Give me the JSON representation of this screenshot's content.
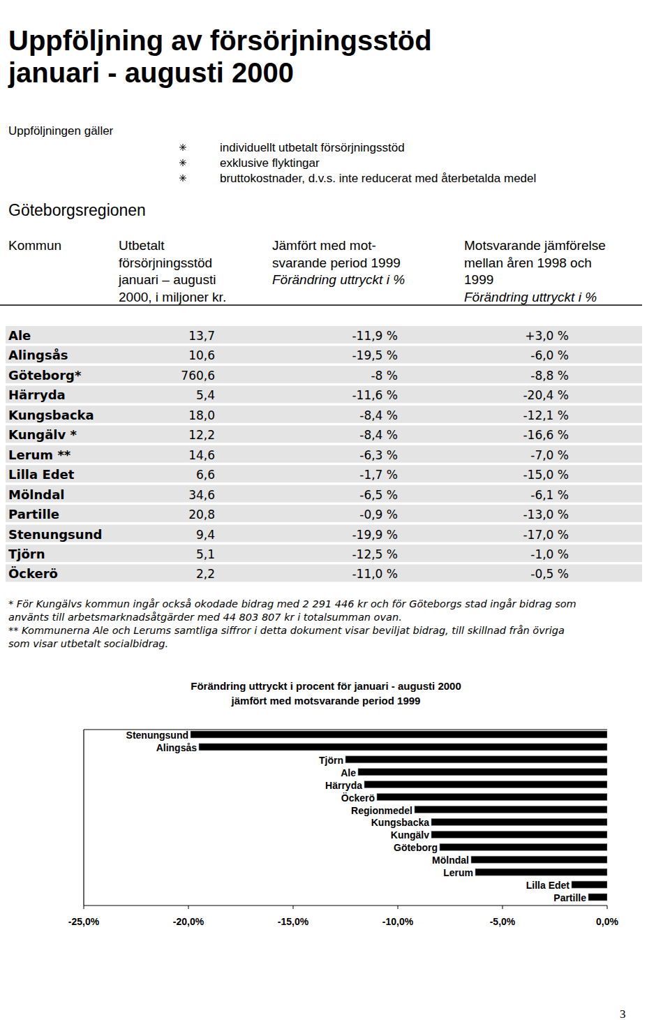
{
  "header": {
    "title": [
      "Uppföljning av försörjningsstöd",
      "januari - augusti 2000"
    ],
    "intro": "Uppföljningen gäller",
    "bullets": [
      "individuellt utbetalt försörjningsstöd",
      "exklusive flyktingar",
      "bruttokostnader, d.v.s. inte reducerat med återbetalda medel"
    ],
    "region": "Göteborgsregionen"
  },
  "table": {
    "columns": [
      {
        "lines": [
          "Kommun"
        ]
      },
      {
        "lines": [
          "Utbetalt",
          "försörjningsstöd",
          "januari – augusti",
          "2000, i miljoner kr."
        ]
      },
      {
        "lines": [
          "Jämfört med mot-",
          "svarande period 1999"
        ],
        "italic_line": "Förändring uttryckt i %"
      },
      {
        "lines": [
          "Motsvarande jämförelse",
          "mellan åren 1998 och",
          "1999"
        ],
        "italic_line": "Förändring uttryckt i %"
      }
    ],
    "rows": [
      [
        "Ale",
        "13,7",
        "-11,9 %",
        "+3,0 %"
      ],
      [
        "Alingsås",
        "10,6",
        "-19,5 %",
        "-6,0 %"
      ],
      [
        "Göteborg*",
        "760,6",
        "-8 %",
        "-8,8 %"
      ],
      [
        "Härryda",
        "5,4",
        "-11,6 %",
        "-20,4 %"
      ],
      [
        "Kungsbacka",
        "18,0",
        "-8,4 %",
        "-12,1 %"
      ],
      [
        "Kungälv *",
        "12,2",
        "-8,4 %",
        "-16,6 %"
      ],
      [
        "Lerum **",
        "14,6",
        "-6,3 %",
        "-7,0 %"
      ],
      [
        "Lilla Edet",
        "6,6",
        "-1,7 %",
        "-15,0 %"
      ],
      [
        "Mölndal",
        "34,6",
        "-6,5 %",
        "-6,1 %"
      ],
      [
        "Partille",
        "20,8",
        "-0,9 %",
        "-13,0 %"
      ],
      [
        "Stenungsund",
        "9,4",
        "-19,9 %",
        "-17,0 %"
      ],
      [
        "Tjörn",
        "5,1",
        "-12,5 %",
        "-1,0 %"
      ],
      [
        "Öckerö",
        "2,2",
        "-11,0 %",
        "-0,5 %"
      ]
    ]
  },
  "footnotes": [
    "* För Kungälvs kommun ingår också okodade bidrag med 2 291 446 kr och för Göteborgs stad ingår bidrag som",
    "använts till arbetsmarknadsåtgärder med 44 803 807 kr i totalsumman ovan.",
    "** Kommunerna Ale och Lerums samtliga siffror i detta dokument visar beviljat bidrag, till skillnad från övriga",
    "som visar utbetalt socialbidrag."
  ],
  "chart_data": {
    "type": "bar",
    "orientation": "horizontal",
    "title": "Förändring uttryckt i procent för januari - augusti 2000",
    "subtitle": "jämfört med motsvarande period 1999",
    "categories": [
      "Stenungsund",
      "Alingsås",
      "Tjörn",
      "Ale",
      "Härryda",
      "Öckerö",
      "Regionmedel",
      "Kungsbacka",
      "Kungälv",
      "Göteborg",
      "Mölndal",
      "Lerum",
      "Lilla Edet",
      "Partille"
    ],
    "values": [
      -19.9,
      -19.5,
      -12.5,
      -11.9,
      -11.6,
      -11.0,
      -9.2,
      -8.4,
      -8.4,
      -8,
      -6.5,
      -6.3,
      -1.7,
      -0.9
    ],
    "color": "#000000",
    "xlim": [
      -25,
      0
    ],
    "xticks": [
      {
        "value": -25,
        "label": "-25,0%"
      },
      {
        "value": -20,
        "label": "-20,0%"
      },
      {
        "value": -15,
        "label": "-15,0%"
      },
      {
        "value": -10,
        "label": "-10,0%"
      },
      {
        "value": -5,
        "label": "-5,0%"
      },
      {
        "value": 0,
        "label": "0,0%"
      }
    ],
    "grid": false,
    "data_labels": false
  },
  "page_number": "3"
}
